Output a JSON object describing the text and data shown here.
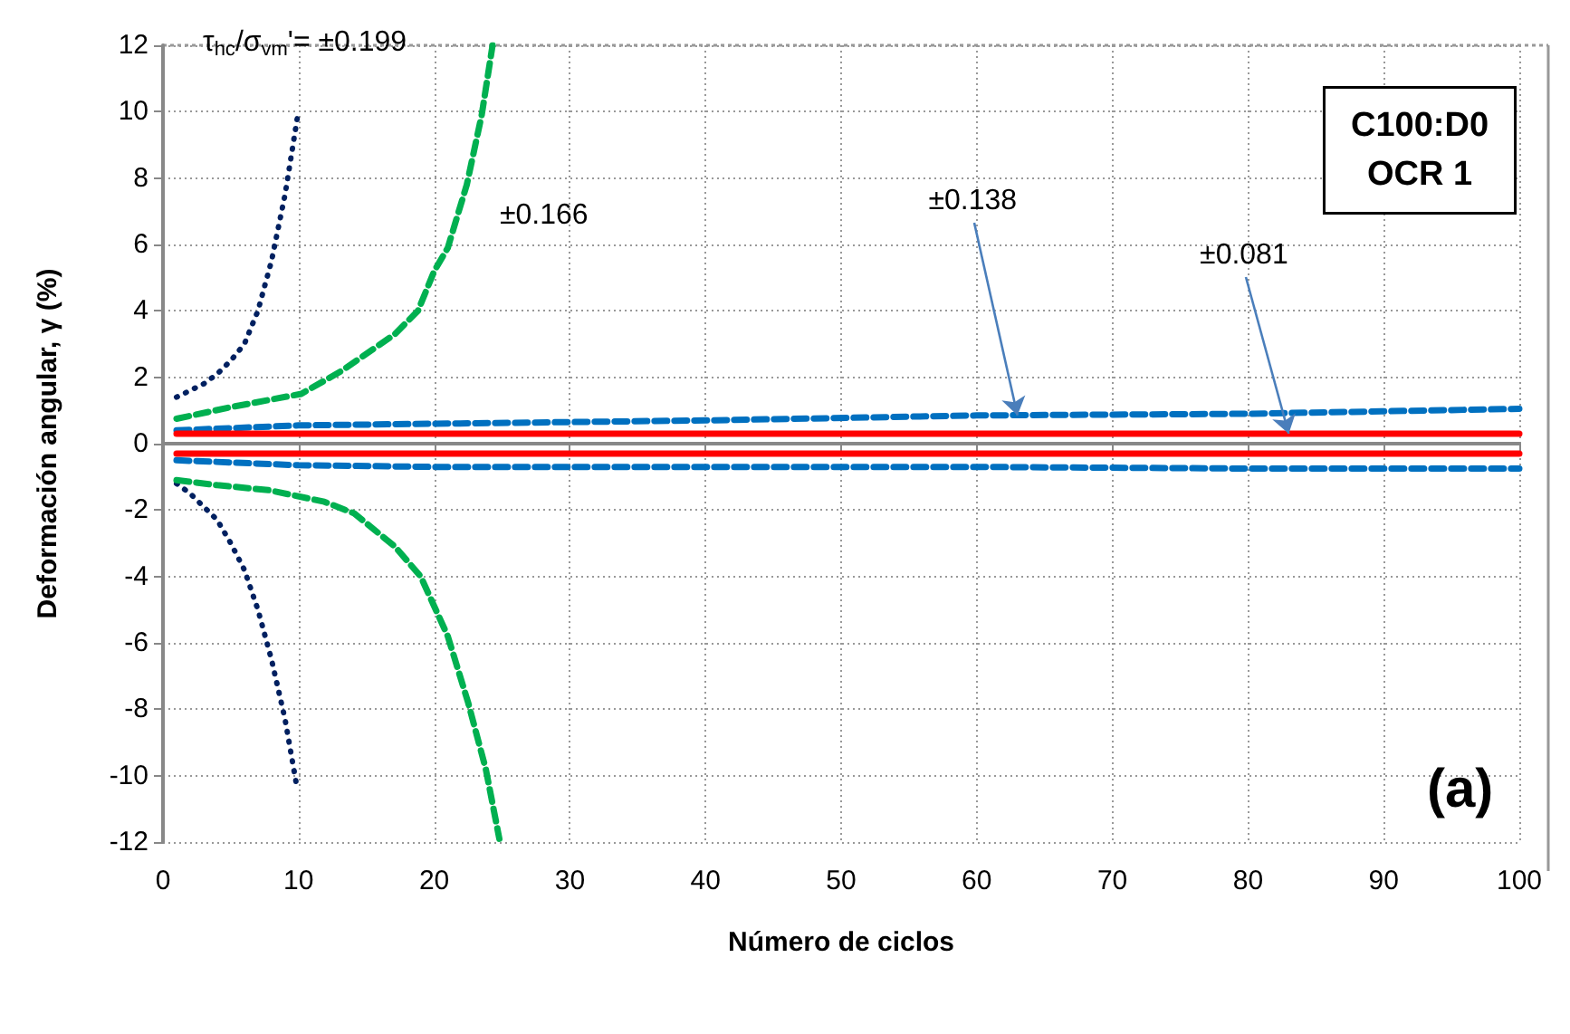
{
  "chart_data": {
    "type": "line",
    "xlabel": "Número de ciclos",
    "ylabel": "Deformación angular, γ (%)",
    "xlim": [
      0,
      100
    ],
    "xticks": [
      0,
      10,
      20,
      30,
      40,
      50,
      60,
      70,
      80,
      90,
      100
    ],
    "ylim": [
      -12,
      12
    ],
    "yticks": [
      -12,
      -10,
      -8,
      -6,
      -4,
      -2,
      0,
      2,
      4,
      6,
      8,
      10,
      12
    ],
    "grid": true,
    "marker": "none",
    "series": [
      {
        "color": "#002060",
        "line_style": "dotted",
        "x": [
          1,
          2,
          3,
          4,
          5,
          6,
          7,
          8,
          9,
          9.9
        ],
        "values": [
          1.4,
          1.6,
          1.8,
          2.1,
          2.5,
          3.0,
          4.0,
          5.5,
          7.5,
          9.8
        ]
      },
      {
        "color": "#002060",
        "line_style": "dotted",
        "x": [
          1,
          2,
          3,
          4,
          5,
          6,
          7,
          8,
          9,
          9.9
        ],
        "values": [
          -1.2,
          -1.5,
          -1.9,
          -2.3,
          -3.0,
          -3.8,
          -5.0,
          -6.5,
          -8.3,
          -10.4
        ]
      },
      {
        "color": "#00b050",
        "line_style": "dashed",
        "x": [
          1,
          5,
          10.2,
          13.2,
          17.1,
          18.8,
          20,
          21,
          22.4,
          23.5,
          24.3
        ],
        "values": [
          0.75,
          1.1,
          1.5,
          2.2,
          3.3,
          4.0,
          5.2,
          5.9,
          7.8,
          9.9,
          12
        ]
      },
      {
        "color": "#00b050",
        "line_style": "dashed",
        "x": [
          1,
          4,
          7.8,
          11.9,
          14.1,
          17.1,
          19,
          21,
          22.5,
          23.8,
          24.8
        ],
        "values": [
          -1.1,
          -1.25,
          -1.4,
          -1.75,
          -2.1,
          -3.1,
          -4.0,
          -5.8,
          -7.8,
          -9.8,
          -11.9
        ]
      },
      {
        "color": "#0070c0",
        "line_style": "dashed",
        "x": [
          1,
          10,
          20,
          40,
          60,
          80,
          100
        ],
        "values": [
          0.4,
          0.55,
          0.6,
          0.7,
          0.85,
          0.9,
          1.05
        ]
      },
      {
        "color": "#0070c0",
        "line_style": "dashed",
        "x": [
          1,
          10,
          20,
          40,
          60,
          80,
          100
        ],
        "values": [
          -0.5,
          -0.65,
          -0.7,
          -0.7,
          -0.7,
          -0.75,
          -0.75
        ]
      },
      {
        "color": "#ff0000",
        "line_style": "solid",
        "x": [
          1,
          20,
          40,
          60,
          80,
          100
        ],
        "values": [
          0.3,
          0.3,
          0.3,
          0.3,
          0.3,
          0.3
        ]
      },
      {
        "color": "#ff0000",
        "line_style": "solid",
        "x": [
          1,
          20,
          40,
          60,
          80,
          100
        ],
        "values": [
          -0.3,
          -0.3,
          -0.3,
          -0.3,
          -0.3,
          -0.3
        ]
      }
    ],
    "annotations": [
      "τ$_{hc}$/σ$_{vm}$'= ±0.199",
      "±0.166",
      {
        "text": "±0.138",
        "x": 63,
        "y": 0.85
      },
      {
        "text": "±0.081",
        "x": 83,
        "y": 0.3
      },
      "C100:D0\nOCR 1",
      "(a)"
    ]
  }
}
